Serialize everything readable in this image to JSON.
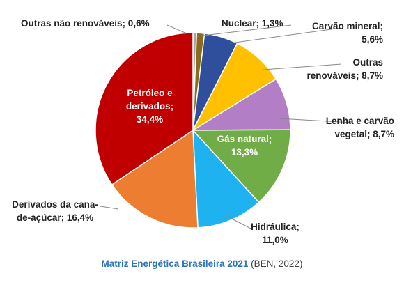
{
  "chart_data": {
    "type": "pie",
    "title": "Matriz Energética Brasileira 2021",
    "source": "(BEN, 2022)",
    "values": [
      0.6,
      1.3,
      5.6,
      8.7,
      8.7,
      13.3,
      11.0,
      16.4,
      34.4
    ],
    "value_labels": [
      "Outras não renováveis; 0,6%",
      "Nuclear; 1,3%",
      "Carvão mineral; 5,6%",
      "Outras renováveis; 8,7%",
      "Lenha e carvão vegetal; 8,7%",
      "Gás natural; 13,3%",
      "Hidráulica; 11,0%",
      "Derivados da cana-de-açúcar; 16,4%",
      "Petróleo e derivados; 34,4%"
    ],
    "colors": [
      "#a6a6a6",
      "#8a6a1e",
      "#2f4f9c",
      "#ffc000",
      "#b27fc6",
      "#70ad47",
      "#1fb2f0",
      "#ed7d31",
      "#c00000"
    ]
  }
}
